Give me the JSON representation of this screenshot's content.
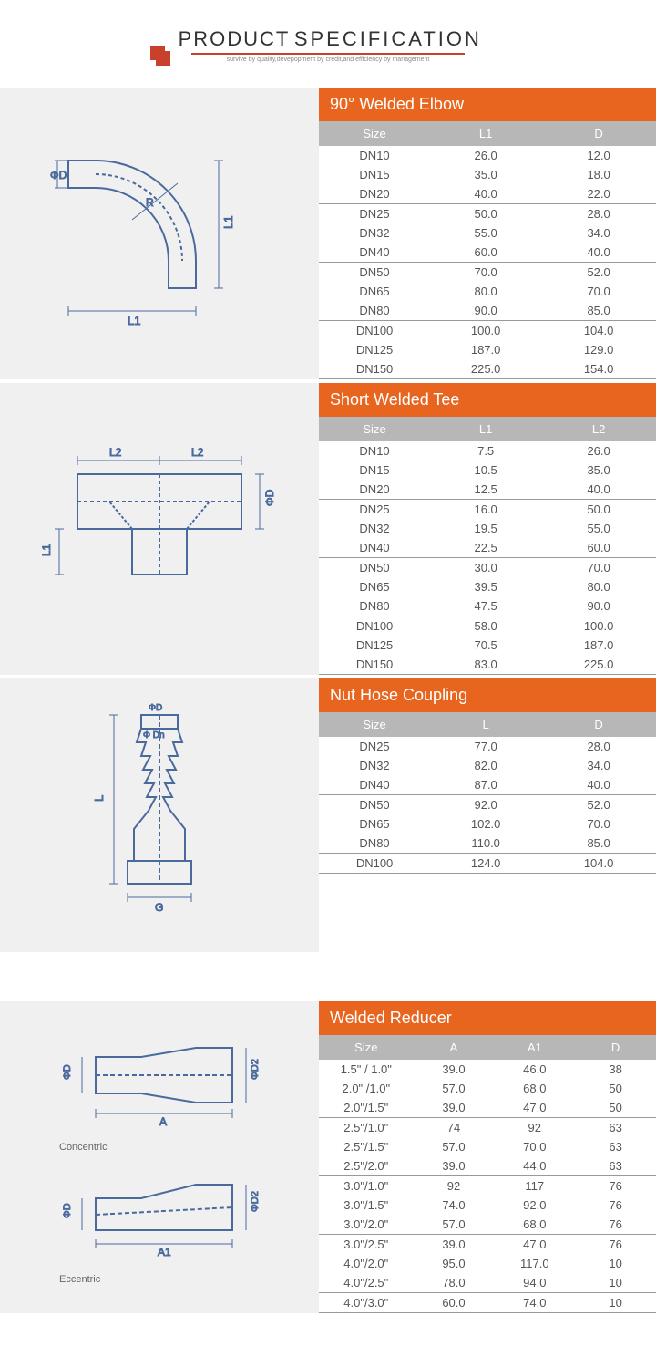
{
  "header": {
    "title1": "PRODUCT",
    "title2": "SPECIFICATION",
    "tagline": "survive by quality,devepopment by credit,and efficiency by management"
  },
  "sections": [
    {
      "title": "90° Welded Elbow",
      "columns": [
        "Size",
        "L1",
        "D"
      ],
      "col_widths": [
        "33%",
        "33%",
        "34%"
      ],
      "groups": [
        [
          [
            "DN10",
            "26.0",
            "12.0"
          ],
          [
            "DN15",
            "35.0",
            "18.0"
          ],
          [
            "DN20",
            "40.0",
            "22.0"
          ]
        ],
        [
          [
            "DN25",
            "50.0",
            "28.0"
          ],
          [
            "DN32",
            "55.0",
            "34.0"
          ],
          [
            "DN40",
            "60.0",
            "40.0"
          ]
        ],
        [
          [
            "DN50",
            "70.0",
            "52.0"
          ],
          [
            "DN65",
            "80.0",
            "70.0"
          ],
          [
            "DN80",
            "90.0",
            "85.0"
          ]
        ],
        [
          [
            "DN100",
            "100.0",
            "104.0"
          ],
          [
            "DN125",
            "187.0",
            "129.0"
          ],
          [
            "DN150",
            "225.0",
            "154.0"
          ]
        ]
      ],
      "diagram": "elbow"
    },
    {
      "title": "Short Welded Tee",
      "columns": [
        "Size",
        "L1",
        "L2"
      ],
      "col_widths": [
        "33%",
        "33%",
        "34%"
      ],
      "groups": [
        [
          [
            "DN10",
            "7.5",
            "26.0"
          ],
          [
            "DN15",
            "10.5",
            "35.0"
          ],
          [
            "DN20",
            "12.5",
            "40.0"
          ]
        ],
        [
          [
            "DN25",
            "16.0",
            "50.0"
          ],
          [
            "DN32",
            "19.5",
            "55.0"
          ],
          [
            "DN40",
            "22.5",
            "60.0"
          ]
        ],
        [
          [
            "DN50",
            "30.0",
            "70.0"
          ],
          [
            "DN65",
            "39.5",
            "80.0"
          ],
          [
            "DN80",
            "47.5",
            "90.0"
          ]
        ],
        [
          [
            "DN100",
            "58.0",
            "100.0"
          ],
          [
            "DN125",
            "70.5",
            "187.0"
          ],
          [
            "DN150",
            "83.0",
            "225.0"
          ]
        ]
      ],
      "diagram": "tee"
    },
    {
      "title": "Nut Hose Coupling",
      "columns": [
        "Size",
        "L",
        "D"
      ],
      "col_widths": [
        "33%",
        "33%",
        "34%"
      ],
      "groups": [
        [
          [
            "DN25",
            "77.0",
            "28.0"
          ],
          [
            "DN32",
            "82.0",
            "34.0"
          ],
          [
            "DN40",
            "87.0",
            "40.0"
          ]
        ],
        [
          [
            "DN50",
            "92.0",
            "52.0"
          ],
          [
            "DN65",
            "102.0",
            "70.0"
          ],
          [
            "DN80",
            "110.0",
            "85.0"
          ]
        ],
        [
          [
            "DN100",
            "124.0",
            "104.0"
          ]
        ]
      ],
      "diagram": "coupling"
    },
    {
      "title": "Welded Reducer",
      "columns": [
        "Size",
        "A",
        "A1",
        "D"
      ],
      "col_widths": [
        "28%",
        "24%",
        "24%",
        "24%"
      ],
      "groups": [
        [
          [
            "1.5\"  / 1.0\"",
            "39.0",
            "46.0",
            "38"
          ],
          [
            "2.0\" /1.0\"",
            "57.0",
            "68.0",
            "50"
          ],
          [
            "2.0\"/1.5\"",
            "39.0",
            "47.0",
            "50"
          ]
        ],
        [
          [
            "2.5\"/1.0\"",
            "74",
            "92",
            "63"
          ],
          [
            "2.5\"/1.5\"",
            "57.0",
            "70.0",
            "63"
          ],
          [
            "2.5\"/2.0\"",
            "39.0",
            "44.0",
            "63"
          ]
        ],
        [
          [
            "3.0\"/1.0\"",
            "92",
            "117",
            "76"
          ],
          [
            "3.0\"/1.5\"",
            "74.0",
            "92.0",
            "76"
          ],
          [
            "3.0\"/2.0\"",
            "57.0",
            "68.0",
            "76"
          ]
        ],
        [
          [
            "3.0\"/2.5\"",
            "39.0",
            "47.0",
            "76"
          ],
          [
            "4.0\"/2.0\"",
            "95.0",
            "117.0",
            "10"
          ],
          [
            "4.0\"/2.5\"",
            "78.0",
            "94.0",
            "10"
          ]
        ],
        [
          [
            "4.0\"/3.0\"",
            "60.0",
            "74.0",
            "10"
          ]
        ]
      ],
      "diagram": "reducer",
      "spacer_before": true
    }
  ],
  "diagram_labels": {
    "concentric": "Concentric",
    "eccentric": "Eccentric"
  },
  "colors": {
    "orange": "#e8651f",
    "header_gray": "#b7b7b7",
    "diagram_bg": "#f0f0f0",
    "logo": "#c9402c",
    "stroke": "#4a6a9e"
  }
}
